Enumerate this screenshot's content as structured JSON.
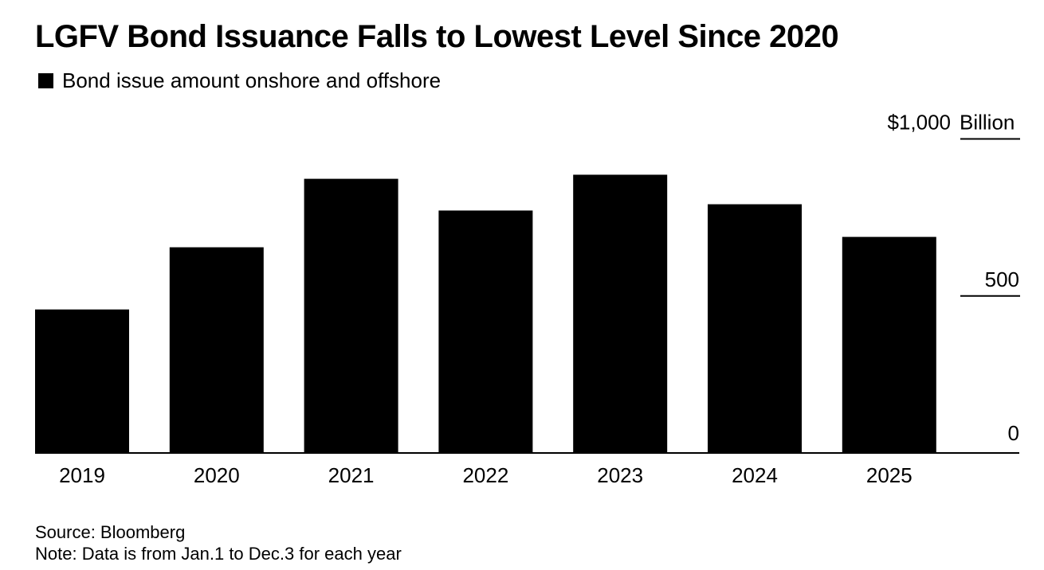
{
  "chart_data": {
    "type": "bar",
    "title": "LGFV Bond Issuance Falls to Lowest Level Since 2020",
    "legend": [
      {
        "name": "Bond issue amount onshore and offshore",
        "color": "#000000"
      }
    ],
    "legend_position": "top-left",
    "categories": [
      "2019",
      "2020",
      "2021",
      "2022",
      "2023",
      "2024",
      "2025"
    ],
    "series": [
      {
        "name": "Bond issue amount onshore and offshore",
        "values": [
          457,
          655,
          873,
          772,
          886,
          792,
          688
        ]
      }
    ],
    "xlabel": "",
    "ylabel": "Billion",
    "y_unit_label": "Billion",
    "ylim": [
      0,
      1000
    ],
    "y_ticks": [
      {
        "value": 0,
        "label": "0"
      },
      {
        "value": 500,
        "label": "500"
      },
      {
        "value": 1000,
        "label": "$1,000"
      }
    ],
    "y_axis_position": "right",
    "grid": false,
    "bar_color": "#000000",
    "source": "Source: Bloomberg",
    "note": "Note: Data is from Jan.1 to Dec.3 for each year"
  }
}
